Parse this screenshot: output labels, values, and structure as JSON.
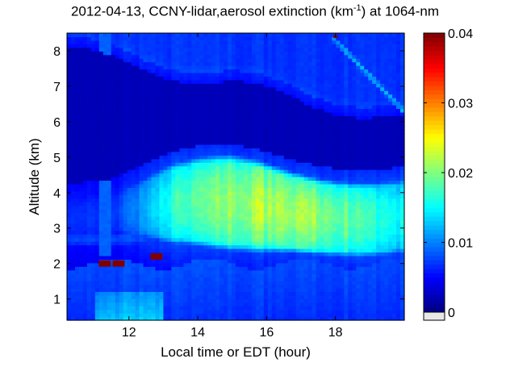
{
  "chart_data": {
    "type": "heatmap",
    "title": {
      "prefix": "2012-04-13, CCNY-lidar,aerosol extinction (km",
      "exponent": "-1",
      "suffix": ") at 1064-nm"
    },
    "xlabel": "Local time or EDT (hour)",
    "ylabel": "Altitude (km)",
    "xlim": [
      10.2,
      20.0
    ],
    "ylim": [
      0.4,
      8.5
    ],
    "xticks": [
      12,
      14,
      16,
      18
    ],
    "yticks": [
      1,
      2,
      3,
      4,
      5,
      6,
      7,
      8
    ],
    "colorbar": {
      "range": [
        0,
        0.04
      ],
      "ticks": [
        0,
        0.01,
        0.02,
        0.03,
        0.04
      ],
      "tick_labels": [
        "0",
        "0.01",
        "0.02",
        "0.03",
        "0.04"
      ],
      "colormap": "jet"
    },
    "features": {
      "elevated_aerosol_layer": {
        "x": [
          12.0,
          20.0
        ],
        "bottom_km": 2.6,
        "top_km": 4.4,
        "peak_extinction": 0.022
      },
      "boundary_layer_top_km": 2.0,
      "boundary_layer_extinction": 0.008,
      "descending_layer": {
        "x_start": 10.2,
        "x_end": 20.0,
        "y_start_km": 8.3,
        "y_end_km": 6.3,
        "extinction": 0.007
      },
      "cloud_plume": {
        "start": [
          17.9,
          8.4
        ],
        "end": [
          20.0,
          6.3
        ],
        "extinction": 0.012
      },
      "high_spots": [
        {
          "x": 11.3,
          "y": 2.0,
          "value": 0.04
        },
        {
          "x": 11.7,
          "y": 2.0,
          "value": 0.04
        },
        {
          "x": 12.8,
          "y": 2.2,
          "value": 0.04
        },
        {
          "x": 18.0,
          "y": 8.4,
          "value": 0.04
        }
      ],
      "background_extinction": 0.004
    }
  }
}
